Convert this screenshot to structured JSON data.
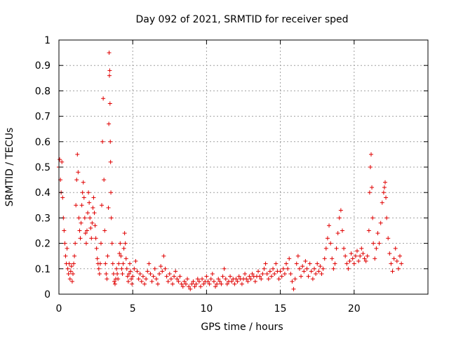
{
  "chart_data": {
    "type": "scatter",
    "title": "Day 092 of 2021, SRMTID for receiver sped",
    "xlabel": "GPS time / hours",
    "ylabel": "SRMTID / TECUs",
    "xlim": [
      0,
      25
    ],
    "ylim": [
      0,
      1
    ],
    "xticks": [
      0,
      5,
      10,
      15,
      20
    ],
    "xtick_labels": [
      "0",
      "5",
      "10",
      "15",
      "20"
    ],
    "yticks": [
      0,
      0.1,
      0.2,
      0.3,
      0.4,
      0.5,
      0.6,
      0.7,
      0.8,
      0.9,
      1
    ],
    "ytick_labels": [
      "0",
      "0.1",
      "0.2",
      "0.3",
      "0.4",
      "0.5",
      "0.6",
      "0.7",
      "0.8",
      "0.9",
      "1"
    ],
    "grid": true,
    "marker": "+",
    "marker_color": "#e00000",
    "series": [
      {
        "name": "SRMTID",
        "points": [
          [
            0.0,
            0.5
          ],
          [
            0.05,
            0.53
          ],
          [
            0.1,
            0.45
          ],
          [
            0.15,
            0.4
          ],
          [
            0.2,
            0.52
          ],
          [
            0.25,
            0.38
          ],
          [
            0.3,
            0.3
          ],
          [
            0.35,
            0.25
          ],
          [
            0.4,
            0.2
          ],
          [
            0.45,
            0.15
          ],
          [
            0.5,
            0.12
          ],
          [
            0.55,
            0.18
          ],
          [
            0.6,
            0.1
          ],
          [
            0.65,
            0.08
          ],
          [
            0.7,
            0.12
          ],
          [
            0.75,
            0.06
          ],
          [
            0.8,
            0.09
          ],
          [
            0.85,
            0.11
          ],
          [
            0.9,
            0.05
          ],
          [
            0.95,
            0.08
          ],
          [
            1.0,
            0.12
          ],
          [
            1.05,
            0.15
          ],
          [
            1.1,
            0.2
          ],
          [
            1.15,
            0.35
          ],
          [
            1.2,
            0.45
          ],
          [
            1.25,
            0.55
          ],
          [
            1.3,
            0.48
          ],
          [
            1.35,
            0.3
          ],
          [
            1.4,
            0.25
          ],
          [
            1.45,
            0.22
          ],
          [
            1.5,
            0.28
          ],
          [
            1.55,
            0.35
          ],
          [
            1.6,
            0.4
          ],
          [
            1.65,
            0.44
          ],
          [
            1.7,
            0.38
          ],
          [
            1.75,
            0.3
          ],
          [
            1.8,
            0.24
          ],
          [
            1.85,
            0.2
          ],
          [
            1.9,
            0.25
          ],
          [
            1.95,
            0.32
          ],
          [
            2.0,
            0.4
          ],
          [
            2.05,
            0.36
          ],
          [
            2.1,
            0.3
          ],
          [
            2.15,
            0.26
          ],
          [
            2.2,
            0.22
          ],
          [
            2.25,
            0.28
          ],
          [
            2.3,
            0.34
          ],
          [
            2.35,
            0.38
          ],
          [
            2.4,
            0.32
          ],
          [
            2.45,
            0.27
          ],
          [
            2.5,
            0.22
          ],
          [
            2.55,
            0.18
          ],
          [
            2.6,
            0.14
          ],
          [
            2.65,
            0.12
          ],
          [
            2.7,
            0.1
          ],
          [
            2.75,
            0.08
          ],
          [
            2.8,
            0.12
          ],
          [
            2.85,
            0.2
          ],
          [
            2.9,
            0.35
          ],
          [
            2.95,
            0.6
          ],
          [
            3.0,
            0.77
          ],
          [
            3.05,
            0.45
          ],
          [
            3.1,
            0.25
          ],
          [
            3.15,
            0.12
          ],
          [
            3.2,
            0.08
          ],
          [
            3.25,
            0.06
          ],
          [
            3.3,
            0.15
          ],
          [
            3.35,
            0.34
          ],
          [
            3.38,
            0.67
          ],
          [
            3.4,
            0.95
          ],
          [
            3.42,
            0.86
          ],
          [
            3.44,
            0.88
          ],
          [
            3.46,
            0.75
          ],
          [
            3.48,
            0.6
          ],
          [
            3.5,
            0.52
          ],
          [
            3.52,
            0.4
          ],
          [
            3.55,
            0.3
          ],
          [
            3.6,
            0.2
          ],
          [
            3.65,
            0.12
          ],
          [
            3.7,
            0.08
          ],
          [
            3.75,
            0.05
          ],
          [
            3.8,
            0.04
          ],
          [
            3.85,
            0.06
          ],
          [
            3.9,
            0.1
          ],
          [
            3.95,
            0.08
          ],
          [
            4.0,
            0.06
          ],
          [
            4.05,
            0.12
          ],
          [
            4.1,
            0.16
          ],
          [
            4.15,
            0.2
          ],
          [
            4.2,
            0.15
          ],
          [
            4.25,
            0.1
          ],
          [
            4.3,
            0.08
          ],
          [
            4.35,
            0.12
          ],
          [
            4.4,
            0.18
          ],
          [
            4.45,
            0.24
          ],
          [
            4.5,
            0.2
          ],
          [
            4.55,
            0.14
          ],
          [
            4.6,
            0.1
          ],
          [
            4.65,
            0.07
          ],
          [
            4.7,
            0.05
          ],
          [
            4.75,
            0.08
          ],
          [
            4.8,
            0.12
          ],
          [
            4.85,
            0.09
          ],
          [
            4.9,
            0.06
          ],
          [
            4.95,
            0.04
          ],
          [
            5.0,
            0.07
          ],
          [
            5.1,
            0.1
          ],
          [
            5.2,
            0.13
          ],
          [
            5.3,
            0.09
          ],
          [
            5.4,
            0.06
          ],
          [
            5.5,
            0.08
          ],
          [
            5.6,
            0.05
          ],
          [
            5.7,
            0.07
          ],
          [
            5.8,
            0.04
          ],
          [
            5.9,
            0.06
          ],
          [
            6.0,
            0.09
          ],
          [
            6.1,
            0.12
          ],
          [
            6.2,
            0.08
          ],
          [
            6.3,
            0.05
          ],
          [
            6.4,
            0.07
          ],
          [
            6.5,
            0.1
          ],
          [
            6.6,
            0.06
          ],
          [
            6.7,
            0.04
          ],
          [
            6.8,
            0.08
          ],
          [
            6.9,
            0.11
          ],
          [
            7.0,
            0.09
          ],
          [
            7.1,
            0.15
          ],
          [
            7.2,
            0.1
          ],
          [
            7.3,
            0.07
          ],
          [
            7.4,
            0.05
          ],
          [
            7.5,
            0.08
          ],
          [
            7.6,
            0.06
          ],
          [
            7.7,
            0.04
          ],
          [
            7.8,
            0.07
          ],
          [
            7.9,
            0.09
          ],
          [
            8.0,
            0.06
          ],
          [
            8.1,
            0.05
          ],
          [
            8.2,
            0.07
          ],
          [
            8.3,
            0.04
          ],
          [
            8.4,
            0.03
          ],
          [
            8.5,
            0.05
          ],
          [
            8.6,
            0.04
          ],
          [
            8.7,
            0.06
          ],
          [
            8.8,
            0.03
          ],
          [
            8.9,
            0.02
          ],
          [
            9.0,
            0.04
          ],
          [
            9.1,
            0.05
          ],
          [
            9.2,
            0.03
          ],
          [
            9.3,
            0.04
          ],
          [
            9.4,
            0.06
          ],
          [
            9.5,
            0.05
          ],
          [
            9.6,
            0.03
          ],
          [
            9.7,
            0.06
          ],
          [
            9.8,
            0.04
          ],
          [
            9.9,
            0.05
          ],
          [
            10.0,
            0.07
          ],
          [
            10.1,
            0.05
          ],
          [
            10.2,
            0.04
          ],
          [
            10.3,
            0.06
          ],
          [
            10.4,
            0.08
          ],
          [
            10.5,
            0.05
          ],
          [
            10.6,
            0.03
          ],
          [
            10.7,
            0.04
          ],
          [
            10.8,
            0.06
          ],
          [
            10.9,
            0.05
          ],
          [
            11.0,
            0.04
          ],
          [
            11.1,
            0.07
          ],
          [
            11.2,
            0.1
          ],
          [
            11.3,
            0.06
          ],
          [
            11.4,
            0.04
          ],
          [
            11.5,
            0.05
          ],
          [
            11.6,
            0.07
          ],
          [
            11.7,
            0.05
          ],
          [
            11.8,
            0.06
          ],
          [
            11.9,
            0.04
          ],
          [
            12.0,
            0.06
          ],
          [
            12.1,
            0.05
          ],
          [
            12.2,
            0.07
          ],
          [
            12.3,
            0.06
          ],
          [
            12.4,
            0.04
          ],
          [
            12.5,
            0.06
          ],
          [
            12.6,
            0.08
          ],
          [
            12.7,
            0.06
          ],
          [
            12.8,
            0.05
          ],
          [
            12.9,
            0.07
          ],
          [
            13.0,
            0.06
          ],
          [
            13.1,
            0.08
          ],
          [
            13.2,
            0.07
          ],
          [
            13.3,
            0.05
          ],
          [
            13.4,
            0.07
          ],
          [
            13.5,
            0.09
          ],
          [
            13.6,
            0.07
          ],
          [
            13.7,
            0.06
          ],
          [
            13.8,
            0.08
          ],
          [
            13.9,
            0.1
          ],
          [
            14.0,
            0.12
          ],
          [
            14.1,
            0.08
          ],
          [
            14.2,
            0.06
          ],
          [
            14.3,
            0.09
          ],
          [
            14.4,
            0.07
          ],
          [
            14.5,
            0.1
          ],
          [
            14.6,
            0.08
          ],
          [
            14.7,
            0.12
          ],
          [
            14.8,
            0.09
          ],
          [
            14.9,
            0.06
          ],
          [
            15.0,
            0.09
          ],
          [
            15.1,
            0.07
          ],
          [
            15.2,
            0.1
          ],
          [
            15.3,
            0.08
          ],
          [
            15.4,
            0.12
          ],
          [
            15.5,
            0.1
          ],
          [
            15.6,
            0.14
          ],
          [
            15.7,
            0.08
          ],
          [
            15.8,
            0.05
          ],
          [
            15.9,
            0.02
          ],
          [
            16.0,
            0.06
          ],
          [
            16.1,
            0.12
          ],
          [
            16.2,
            0.15
          ],
          [
            16.3,
            0.1
          ],
          [
            16.4,
            0.07
          ],
          [
            16.5,
            0.11
          ],
          [
            16.6,
            0.09
          ],
          [
            16.7,
            0.13
          ],
          [
            16.8,
            0.1
          ],
          [
            16.9,
            0.07
          ],
          [
            17.0,
            0.12
          ],
          [
            17.1,
            0.09
          ],
          [
            17.2,
            0.06
          ],
          [
            17.3,
            0.1
          ],
          [
            17.4,
            0.08
          ],
          [
            17.5,
            0.12
          ],
          [
            17.6,
            0.09
          ],
          [
            17.7,
            0.11
          ],
          [
            17.8,
            0.08
          ],
          [
            17.9,
            0.1
          ],
          [
            18.0,
            0.14
          ],
          [
            18.1,
            0.18
          ],
          [
            18.2,
            0.22
          ],
          [
            18.3,
            0.27
          ],
          [
            18.4,
            0.2
          ],
          [
            18.5,
            0.14
          ],
          [
            18.6,
            0.1
          ],
          [
            18.7,
            0.12
          ],
          [
            18.8,
            0.18
          ],
          [
            18.9,
            0.24
          ],
          [
            19.0,
            0.3
          ],
          [
            19.1,
            0.33
          ],
          [
            19.2,
            0.25
          ],
          [
            19.3,
            0.18
          ],
          [
            19.4,
            0.15
          ],
          [
            19.5,
            0.12
          ],
          [
            19.6,
            0.1
          ],
          [
            19.7,
            0.13
          ],
          [
            19.8,
            0.16
          ],
          [
            19.9,
            0.14
          ],
          [
            20.0,
            0.12
          ],
          [
            20.1,
            0.15
          ],
          [
            20.2,
            0.17
          ],
          [
            20.3,
            0.13
          ],
          [
            20.4,
            0.15
          ],
          [
            20.5,
            0.18
          ],
          [
            20.6,
            0.16
          ],
          [
            20.7,
            0.14
          ],
          [
            20.8,
            0.13
          ],
          [
            20.9,
            0.15
          ],
          [
            21.0,
            0.25
          ],
          [
            21.05,
            0.4
          ],
          [
            21.1,
            0.5
          ],
          [
            21.15,
            0.55
          ],
          [
            21.2,
            0.42
          ],
          [
            21.25,
            0.3
          ],
          [
            21.3,
            0.2
          ],
          [
            21.4,
            0.14
          ],
          [
            21.5,
            0.18
          ],
          [
            21.6,
            0.24
          ],
          [
            21.7,
            0.2
          ],
          [
            21.8,
            0.28
          ],
          [
            21.9,
            0.36
          ],
          [
            22.0,
            0.4
          ],
          [
            22.05,
            0.42
          ],
          [
            22.1,
            0.44
          ],
          [
            22.15,
            0.38
          ],
          [
            22.2,
            0.3
          ],
          [
            22.3,
            0.22
          ],
          [
            22.4,
            0.16
          ],
          [
            22.5,
            0.12
          ],
          [
            22.6,
            0.09
          ],
          [
            22.7,
            0.14
          ],
          [
            22.8,
            0.18
          ],
          [
            22.9,
            0.13
          ],
          [
            23.0,
            0.1
          ],
          [
            23.1,
            0.15
          ],
          [
            23.2,
            0.12
          ]
        ]
      }
    ]
  }
}
